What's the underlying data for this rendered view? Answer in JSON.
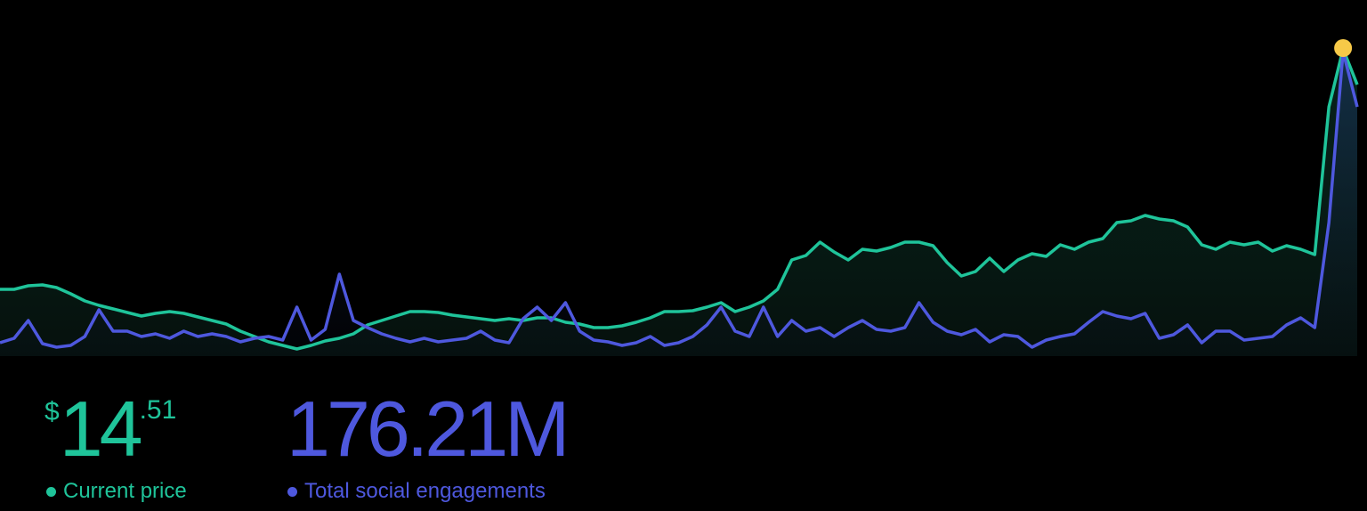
{
  "chart_data": {
    "type": "line",
    "title": "",
    "xlabel": "",
    "ylabel": "",
    "grid": false,
    "legend_placement": "bottom-left",
    "colors": {
      "price": "#1fc49a",
      "engagements": "#4e58de",
      "highlight": "#f7c948",
      "background": "#000000"
    },
    "series": [
      {
        "name": "Current price",
        "values": [
          75,
          75,
          79,
          80,
          77,
          70,
          62,
          57,
          53,
          49,
          45,
          48,
          50,
          48,
          44,
          40,
          36,
          28,
          22,
          16,
          12,
          8,
          12,
          17,
          20,
          25,
          35,
          40,
          45,
          50,
          50,
          49,
          46,
          44,
          42,
          40,
          42,
          40,
          43,
          43,
          38,
          36,
          32,
          32,
          34,
          38,
          43,
          50,
          50,
          51,
          55,
          60,
          50,
          55,
          62,
          75,
          108,
          113,
          128,
          117,
          108,
          120,
          118,
          122,
          128,
          128,
          124,
          105,
          90,
          95,
          110,
          95,
          108,
          115,
          112,
          125,
          120,
          128,
          132,
          150,
          152,
          158,
          154,
          152,
          145,
          125,
          120,
          128,
          125,
          128,
          118,
          124,
          120,
          114,
          280,
          345,
          305
        ]
      },
      {
        "name": "Total social engagements",
        "values": [
          15,
          20,
          40,
          14,
          10,
          12,
          22,
          52,
          28,
          28,
          22,
          25,
          20,
          28,
          22,
          25,
          22,
          16,
          20,
          22,
          18,
          55,
          18,
          30,
          92,
          40,
          32,
          25,
          20,
          16,
          20,
          16,
          18,
          20,
          28,
          18,
          15,
          42,
          55,
          40,
          60,
          28,
          18,
          16,
          12,
          15,
          22,
          12,
          15,
          22,
          35,
          55,
          28,
          22,
          55,
          22,
          40,
          28,
          32,
          22,
          32,
          40,
          30,
          28,
          32,
          60,
          38,
          28,
          24,
          30,
          16,
          24,
          22,
          10,
          18,
          22,
          25,
          38,
          50,
          45,
          42,
          48,
          20,
          24,
          35,
          15,
          28,
          28,
          18,
          20,
          22,
          35,
          43,
          32,
          150,
          342,
          280
        ]
      }
    ]
  },
  "stats": {
    "price": {
      "currency": "$",
      "integer": "14",
      "decimal": ".51",
      "label": "Current price"
    },
    "engagements": {
      "value": "176.21M",
      "label": "Total social engagements"
    }
  }
}
